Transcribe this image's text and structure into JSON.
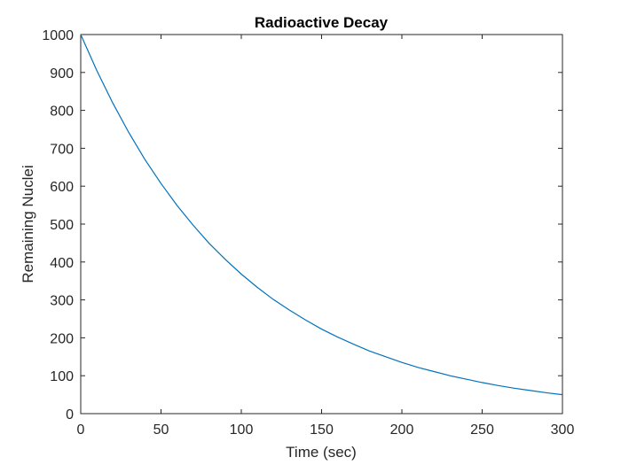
{
  "chart_data": {
    "type": "line",
    "title": "Radioactive Decay",
    "xlabel": "Time (sec)",
    "ylabel": "Remaining Nuclei",
    "xlim": [
      0,
      300
    ],
    "ylim": [
      0,
      1000
    ],
    "xticks": [
      0,
      50,
      100,
      150,
      200,
      250,
      300
    ],
    "yticks": [
      0,
      100,
      200,
      300,
      400,
      500,
      600,
      700,
      800,
      900,
      1000
    ],
    "grid": false,
    "legend": "none",
    "series": [
      {
        "color": "#0072BD",
        "x": [
          0,
          10,
          20,
          30,
          40,
          50,
          60,
          70,
          80,
          90,
          100,
          110,
          120,
          130,
          140,
          150,
          160,
          170,
          180,
          190,
          200,
          210,
          220,
          230,
          240,
          250,
          260,
          270,
          280,
          290,
          300
        ],
        "y": [
          1000,
          905,
          819,
          741,
          670,
          607,
          549,
          497,
          449,
          407,
          368,
          333,
          301,
          273,
          247,
          223,
          202,
          183,
          165,
          150,
          135,
          122,
          111,
          100,
          91,
          82,
          74,
          67,
          61,
          55,
          50
        ]
      }
    ]
  }
}
